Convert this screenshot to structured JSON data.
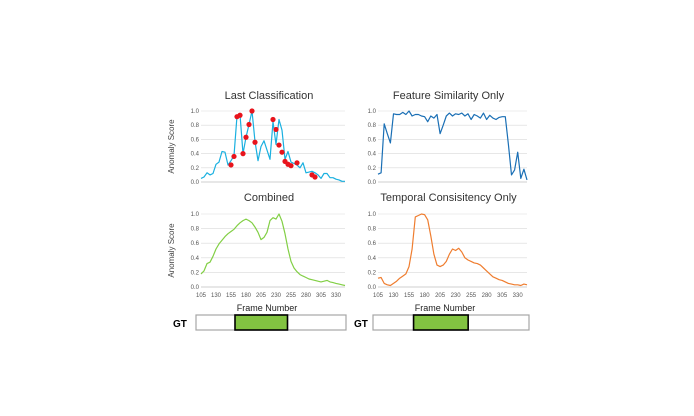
{
  "colors": {
    "last_classification": "#1ab0e0",
    "feature_similarity": "#1a6fb5",
    "combined": "#82cf45",
    "temporal": "#ef7d2f",
    "markers": "#e8141c",
    "gt_fill": "#82c341"
  },
  "gt_label": "GT",
  "x_axis_label": "Frame Number",
  "y_axis_label": "Anomaly Score",
  "x_tick_labels": [
    "105",
    "130",
    "155",
    "180",
    "205",
    "230",
    "255",
    "280",
    "305",
    "330"
  ],
  "y_tick_labels": [
    "0.0",
    "0.2",
    "0.4",
    "0.6",
    "0.8",
    "1.0"
  ],
  "chart_data": [
    {
      "type": "line",
      "title": "Last Classification",
      "ylabel": "Anomaly Score",
      "xlim": [
        105,
        345
      ],
      "ylim": [
        0,
        1
      ],
      "x": [
        105,
        110,
        115,
        120,
        125,
        130,
        135,
        140,
        145,
        150,
        155,
        160,
        165,
        170,
        175,
        180,
        185,
        190,
        195,
        200,
        205,
        210,
        215,
        220,
        225,
        230,
        235,
        240,
        245,
        250,
        255,
        260,
        265,
        270,
        275,
        280,
        285,
        290,
        295,
        300,
        305,
        310,
        315,
        320,
        325,
        330,
        335,
        340,
        345
      ],
      "series": [
        {
          "values": [
            0.05,
            0.07,
            0.13,
            0.1,
            0.12,
            0.25,
            0.28,
            0.43,
            0.42,
            0.24,
            0.3,
            0.37,
            0.93,
            0.95,
            0.4,
            0.63,
            0.81,
            1.0,
            0.57,
            0.3,
            0.5,
            0.58,
            0.45,
            0.32,
            0.85,
            0.53,
            0.88,
            0.73,
            0.32,
            0.43,
            0.28,
            0.26,
            0.24,
            0.2,
            0.27,
            0.13,
            0.14,
            0.15,
            0.13,
            0.1,
            0.05,
            0.12,
            0.12,
            0.06,
            0.06,
            0.04,
            0.03,
            0.01,
            0.01
          ]
        }
      ],
      "markers": [
        [
          155,
          0.24
        ],
        [
          160,
          0.36
        ],
        [
          165,
          0.92
        ],
        [
          170,
          0.94
        ],
        [
          175,
          0.4
        ],
        [
          180,
          0.63
        ],
        [
          185,
          0.81
        ],
        [
          190,
          1.0
        ],
        [
          195,
          0.56
        ],
        [
          225,
          0.88
        ],
        [
          230,
          0.74
        ],
        [
          235,
          0.52
        ],
        [
          240,
          0.42
        ],
        [
          245,
          0.29
        ],
        [
          250,
          0.25
        ],
        [
          255,
          0.23
        ],
        [
          265,
          0.27
        ],
        [
          290,
          0.1
        ],
        [
          295,
          0.07
        ]
      ]
    },
    {
      "type": "line",
      "title": "Feature Similarity Only",
      "xlim": [
        105,
        345
      ],
      "ylim": [
        0,
        1
      ],
      "x": [
        105,
        110,
        115,
        120,
        125,
        130,
        135,
        140,
        145,
        150,
        155,
        160,
        165,
        170,
        175,
        180,
        185,
        190,
        195,
        200,
        205,
        210,
        215,
        220,
        225,
        230,
        235,
        240,
        245,
        250,
        255,
        260,
        265,
        270,
        275,
        280,
        285,
        290,
        295,
        300,
        305,
        310,
        315,
        320,
        325,
        330,
        335,
        340,
        345
      ],
      "series": [
        {
          "values": [
            0.11,
            0.13,
            0.82,
            0.68,
            0.55,
            0.96,
            0.95,
            0.95,
            0.98,
            0.95,
            1.0,
            0.93,
            0.95,
            0.95,
            0.93,
            0.92,
            0.85,
            0.93,
            0.9,
            0.95,
            0.68,
            0.8,
            0.93,
            0.97,
            0.93,
            0.96,
            0.95,
            0.97,
            0.93,
            0.96,
            0.88,
            0.95,
            0.93,
            0.9,
            0.97,
            0.88,
            0.94,
            0.9,
            0.88,
            0.91,
            0.92,
            0.92,
            0.53,
            0.1,
            0.17,
            0.42,
            0.05,
            0.18,
            0.03
          ]
        }
      ]
    },
    {
      "type": "line",
      "title": "Combined",
      "ylabel": "Anomaly Score",
      "xlim": [
        105,
        345
      ],
      "ylim": [
        0,
        1
      ],
      "x": [
        105,
        110,
        115,
        120,
        125,
        130,
        135,
        140,
        145,
        150,
        155,
        160,
        165,
        170,
        175,
        180,
        185,
        190,
        195,
        200,
        205,
        210,
        215,
        220,
        225,
        230,
        235,
        240,
        245,
        250,
        255,
        260,
        265,
        270,
        275,
        280,
        285,
        290,
        295,
        300,
        305,
        310,
        315,
        320,
        325,
        330,
        335,
        340,
        345
      ],
      "series": [
        {
          "values": [
            0.18,
            0.22,
            0.32,
            0.34,
            0.42,
            0.52,
            0.59,
            0.64,
            0.69,
            0.73,
            0.76,
            0.79,
            0.84,
            0.88,
            0.91,
            0.93,
            0.91,
            0.88,
            0.82,
            0.75,
            0.65,
            0.68,
            0.75,
            0.91,
            0.95,
            0.93,
            1.0,
            0.9,
            0.73,
            0.52,
            0.35,
            0.26,
            0.21,
            0.17,
            0.15,
            0.13,
            0.11,
            0.1,
            0.09,
            0.08,
            0.07,
            0.08,
            0.09,
            0.07,
            0.06,
            0.05,
            0.04,
            0.03,
            0.02
          ]
        }
      ]
    },
    {
      "type": "line",
      "title": "Temporal Consisitency Only",
      "xlim": [
        105,
        345
      ],
      "ylim": [
        0,
        1
      ],
      "x": [
        105,
        110,
        115,
        120,
        125,
        130,
        135,
        140,
        145,
        150,
        155,
        160,
        165,
        170,
        175,
        180,
        185,
        190,
        195,
        200,
        205,
        210,
        215,
        220,
        225,
        230,
        235,
        240,
        245,
        250,
        255,
        260,
        265,
        270,
        275,
        280,
        285,
        290,
        295,
        300,
        305,
        310,
        315,
        320,
        325,
        330,
        335,
        340,
        345
      ],
      "series": [
        {
          "values": [
            0.12,
            0.13,
            0.05,
            0.03,
            0.02,
            0.05,
            0.08,
            0.12,
            0.15,
            0.18,
            0.28,
            0.52,
            0.96,
            0.98,
            1.0,
            0.99,
            0.92,
            0.7,
            0.45,
            0.3,
            0.28,
            0.3,
            0.35,
            0.45,
            0.52,
            0.5,
            0.53,
            0.48,
            0.4,
            0.37,
            0.35,
            0.33,
            0.32,
            0.3,
            0.26,
            0.22,
            0.18,
            0.14,
            0.12,
            0.1,
            0.09,
            0.07,
            0.05,
            0.04,
            0.03,
            0.03,
            0.02,
            0.04,
            0.03
          ]
        }
      ]
    }
  ],
  "gt_bars": [
    {
      "start": 0.26,
      "end": 0.61
    },
    {
      "start": 0.26,
      "end": 0.61
    }
  ]
}
